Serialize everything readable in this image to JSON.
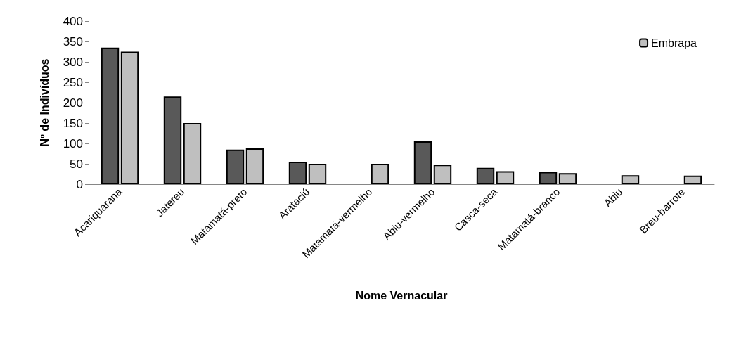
{
  "chart_data": {
    "type": "bar",
    "xlabel": "Nome Vernacular",
    "ylabel": "Nº de Indivíduos",
    "categories": [
      "Acariquarana",
      "Jatereu",
      "Matamatá-preto",
      "Arataciú",
      "Matamatá-vermelho",
      "Abiu-vermelho",
      "Casca-seca",
      "Matamatá-branco",
      "Abiu",
      "Breu-barrote"
    ],
    "series": [
      {
        "color": "#595959",
        "values": [
          335,
          215,
          85,
          55,
          null,
          105,
          40,
          30,
          null,
          null
        ]
      },
      {
        "name": "Embrapa",
        "color": "#bfbfbf",
        "values": [
          325,
          150,
          88,
          50,
          50,
          48,
          32,
          27,
          22,
          21
        ]
      }
    ],
    "ylim": [
      0,
      400
    ],
    "yticks": [
      0,
      50,
      100,
      150,
      200,
      250,
      300,
      350,
      400
    ],
    "grid": false,
    "legend": "top right"
  }
}
